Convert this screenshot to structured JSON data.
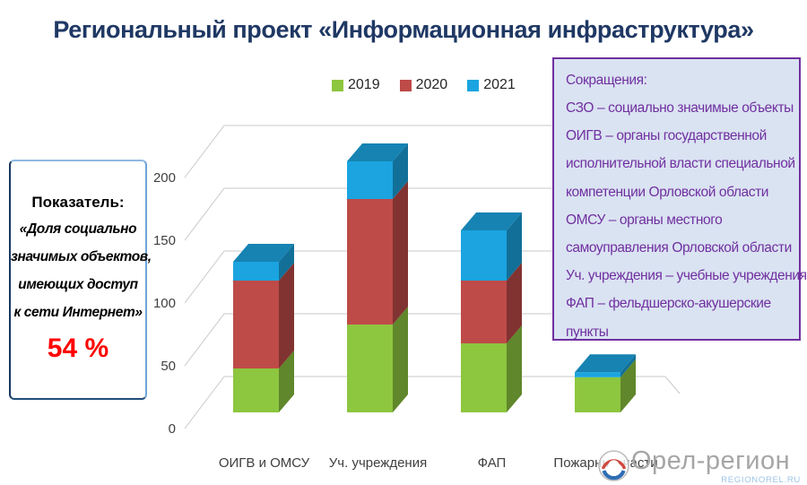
{
  "title": "Региональный проект «Информационная инфраструктура»",
  "indicator_box": {
    "heading": "Показатель:",
    "lines": [
      "«Доля социально",
      "значимых объектов,",
      "имеющих доступ",
      "к сети Интернет»"
    ],
    "value": "54 %"
  },
  "abbreviations_box": {
    "heading": "Сокращения:",
    "lines": [
      "СЗО – социально значимые объекты",
      "ОИГВ – органы государственной",
      "исполнительной власти специальной",
      "компетенции Орловской области",
      "ОМСУ – органы местного",
      "самоуправления Орловской области",
      "Уч. учреждения – учебные учреждения",
      "ФАП – фельдшерско-акушерские",
      "пункты"
    ]
  },
  "chart_data": {
    "type": "bar",
    "subtype": "stacked-3d",
    "title": "",
    "xlabel": "",
    "ylabel": "",
    "categories": [
      "ОИГВ и ОМСУ",
      "Уч. учреждения",
      "ФАП",
      "Пожарные части"
    ],
    "series": [
      {
        "name": "2019",
        "color": "#8DC63F",
        "values": [
          35,
          70,
          55,
          28
        ]
      },
      {
        "name": "2020",
        "color": "#BE4B48",
        "values": [
          70,
          100,
          50,
          0
        ]
      },
      {
        "name": "2021",
        "color": "#1BA4E0",
        "values": [
          15,
          30,
          40,
          4
        ]
      }
    ],
    "totals": [
      120,
      200,
      145,
      32
    ],
    "ylim": [
      0,
      200
    ],
    "yticks": [
      0,
      50,
      100,
      150,
      200
    ],
    "grid": true,
    "legend_position": "top"
  },
  "colors": {
    "title_navy": "#1F3864",
    "indicator_value_red": "#FF0000",
    "abbrev_purple": "#7030A0",
    "abbrev_bg": "#DAE3F2",
    "gridline_gray": "#C9C9C9",
    "logo_gray": "#A6A6A6",
    "logo_site_blue": "#9CC3E6"
  },
  "logo": {
    "text": "Орел-регион",
    "site": "REGIONOREL.RU"
  }
}
